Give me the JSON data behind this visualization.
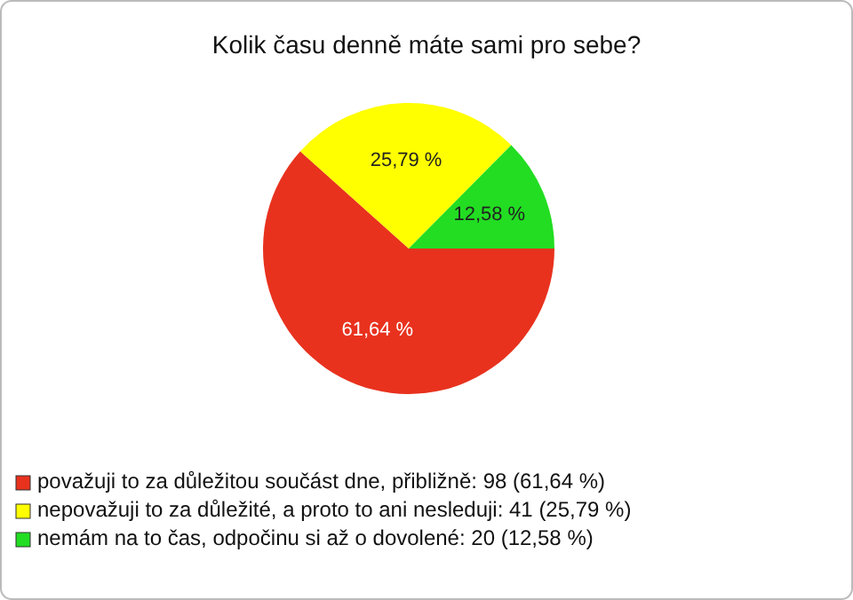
{
  "chart_data": {
    "type": "pie",
    "title": "Kolik času denně máte sami pro sebe?",
    "categories": [
      "považuji to za důležitou součást dne, přibližně: 98 (61,64 %)",
      "nepovažuji to za důležité, a proto to ani nesleduji: 41 (25,79 %)",
      "nemám na to čas, odpočinu si až o dovolené: 20 (12,58 %)"
    ],
    "values": [
      61.64,
      25.79,
      12.58
    ],
    "value_labels": [
      "61,64 %",
      "25,79 %",
      "12,58 %"
    ],
    "colors": [
      "#e8321e",
      "#ffff00",
      "#22dd22"
    ],
    "legend": "bottom"
  }
}
